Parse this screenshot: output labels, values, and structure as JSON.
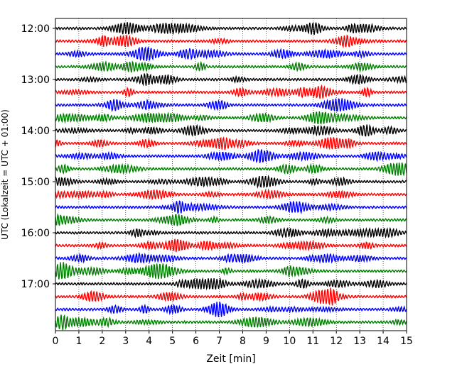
{
  "chart_data": {
    "type": "line",
    "title": "",
    "xlabel": "Zeit  [min]",
    "ylabel": "UTC (Lokalzeit = UTC + 01:00)",
    "xlim": [
      0,
      15
    ],
    "x_ticks": [
      0,
      1,
      2,
      3,
      4,
      5,
      6,
      7,
      8,
      9,
      10,
      11,
      12,
      13,
      14,
      15
    ],
    "y_tick_labels": [
      "12:00",
      "13:00",
      "14:00",
      "15:00",
      "16:00",
      "17:00"
    ],
    "trace_interval_minutes": 15,
    "trace_count": 24,
    "trace_color_cycle": [
      "#000000",
      "#ff0000",
      "#0000ff",
      "#008000"
    ],
    "grid": "vertical dotted",
    "legend": "none"
  }
}
